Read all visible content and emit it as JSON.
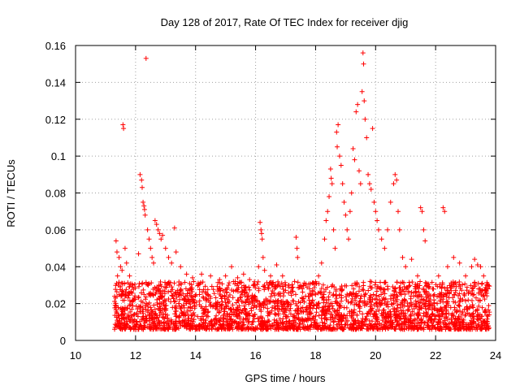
{
  "chart_data": {
    "type": "scatter",
    "title": "Day 128 of 2017, Rate Of TEC Index for receiver djig",
    "xlabel": "GPS time / hours",
    "ylabel": "ROTI / TECUs",
    "xlim": [
      10,
      24
    ],
    "ylim": [
      0,
      0.16
    ],
    "xticks": [
      10,
      12,
      14,
      16,
      18,
      20,
      22,
      24
    ],
    "xtick_labels": [
      "10",
      "12",
      "14",
      "16",
      "18",
      "20",
      "22",
      "24"
    ],
    "yticks": [
      0,
      0.02,
      0.04,
      0.06,
      0.08,
      0.1,
      0.12,
      0.14,
      0.16
    ],
    "ytick_labels": [
      "0",
      "0.02",
      "0.04",
      "0.06",
      "0.08",
      "0.1",
      "0.12",
      "0.14",
      "0.16"
    ],
    "grid": true,
    "marker": "plus",
    "color": "#ff0000",
    "series": [
      {
        "name": "ROTI",
        "points": [
          [
            11.35,
            0.054
          ],
          [
            11.38,
            0.048
          ],
          [
            11.4,
            0.035
          ],
          [
            11.42,
            0.03
          ],
          [
            11.45,
            0.045
          ],
          [
            11.5,
            0.04
          ],
          [
            11.55,
            0.038
          ],
          [
            11.58,
            0.117
          ],
          [
            11.6,
            0.115
          ],
          [
            11.65,
            0.05
          ],
          [
            11.7,
            0.042
          ],
          [
            11.8,
            0.035
          ],
          [
            11.9,
            0.03
          ],
          [
            12.1,
            0.047
          ],
          [
            12.15,
            0.09
          ],
          [
            12.2,
            0.087
          ],
          [
            12.22,
            0.083
          ],
          [
            12.25,
            0.075
          ],
          [
            12.28,
            0.073
          ],
          [
            12.3,
            0.071
          ],
          [
            12.32,
            0.068
          ],
          [
            12.35,
            0.153
          ],
          [
            12.4,
            0.06
          ],
          [
            12.45,
            0.055
          ],
          [
            12.5,
            0.05
          ],
          [
            12.55,
            0.045
          ],
          [
            12.6,
            0.042
          ],
          [
            12.65,
            0.065
          ],
          [
            12.7,
            0.063
          ],
          [
            12.75,
            0.06
          ],
          [
            12.8,
            0.058
          ],
          [
            12.85,
            0.055
          ],
          [
            12.9,
            0.057
          ],
          [
            13.0,
            0.05
          ],
          [
            13.1,
            0.045
          ],
          [
            13.2,
            0.042
          ],
          [
            13.3,
            0.061
          ],
          [
            13.35,
            0.048
          ],
          [
            13.5,
            0.04
          ],
          [
            13.7,
            0.036
          ],
          [
            13.9,
            0.034
          ],
          [
            14.2,
            0.036
          ],
          [
            14.5,
            0.035
          ],
          [
            14.8,
            0.033
          ],
          [
            15.0,
            0.035
          ],
          [
            15.2,
            0.04
          ],
          [
            15.4,
            0.034
          ],
          [
            15.6,
            0.036
          ],
          [
            15.8,
            0.033
          ],
          [
            16.1,
            0.04
          ],
          [
            16.15,
            0.064
          ],
          [
            16.18,
            0.06
          ],
          [
            16.2,
            0.058
          ],
          [
            16.22,
            0.055
          ],
          [
            16.25,
            0.045
          ],
          [
            16.3,
            0.038
          ],
          [
            16.5,
            0.035
          ],
          [
            16.7,
            0.041
          ],
          [
            16.9,
            0.035
          ],
          [
            17.1,
            0.03
          ],
          [
            17.3,
            0.032
          ],
          [
            17.35,
            0.056
          ],
          [
            17.38,
            0.05
          ],
          [
            17.4,
            0.045
          ],
          [
            17.6,
            0.03
          ],
          [
            17.8,
            0.028
          ],
          [
            17.9,
            0.027
          ],
          [
            18.1,
            0.035
          ],
          [
            18.2,
            0.042
          ],
          [
            18.3,
            0.055
          ],
          [
            18.35,
            0.065
          ],
          [
            18.4,
            0.07
          ],
          [
            18.45,
            0.078
          ],
          [
            18.5,
            0.093
          ],
          [
            18.52,
            0.088
          ],
          [
            18.55,
            0.085
          ],
          [
            18.6,
            0.06
          ],
          [
            18.65,
            0.05
          ],
          [
            18.7,
            0.113
          ],
          [
            18.72,
            0.105
          ],
          [
            18.75,
            0.117
          ],
          [
            18.8,
            0.1
          ],
          [
            18.85,
            0.095
          ],
          [
            18.9,
            0.085
          ],
          [
            18.95,
            0.075
          ],
          [
            19.0,
            0.068
          ],
          [
            19.05,
            0.06
          ],
          [
            19.1,
            0.055
          ],
          [
            19.15,
            0.07
          ],
          [
            19.2,
            0.08
          ],
          [
            19.25,
            0.104
          ],
          [
            19.3,
            0.098
          ],
          [
            19.35,
            0.124
          ],
          [
            19.4,
            0.128
          ],
          [
            19.45,
            0.092
          ],
          [
            19.5,
            0.085
          ],
          [
            19.55,
            0.135
          ],
          [
            19.58,
            0.156
          ],
          [
            19.6,
            0.15
          ],
          [
            19.62,
            0.13
          ],
          [
            19.65,
            0.12
          ],
          [
            19.7,
            0.11
          ],
          [
            19.75,
            0.09
          ],
          [
            19.8,
            0.085
          ],
          [
            19.85,
            0.082
          ],
          [
            19.9,
            0.115
          ],
          [
            19.95,
            0.075
          ],
          [
            20.0,
            0.07
          ],
          [
            20.05,
            0.065
          ],
          [
            20.1,
            0.06
          ],
          [
            20.2,
            0.055
          ],
          [
            20.3,
            0.05
          ],
          [
            20.4,
            0.06
          ],
          [
            20.5,
            0.075
          ],
          [
            20.6,
            0.085
          ],
          [
            20.65,
            0.09
          ],
          [
            20.7,
            0.087
          ],
          [
            20.75,
            0.07
          ],
          [
            20.8,
            0.06
          ],
          [
            20.9,
            0.045
          ],
          [
            21.0,
            0.04
          ],
          [
            21.2,
            0.044
          ],
          [
            21.4,
            0.035
          ],
          [
            21.5,
            0.072
          ],
          [
            21.55,
            0.07
          ],
          [
            21.6,
            0.06
          ],
          [
            21.65,
            0.054
          ],
          [
            21.7,
            0.03
          ],
          [
            21.9,
            0.028
          ],
          [
            22.1,
            0.035
          ],
          [
            22.25,
            0.072
          ],
          [
            22.3,
            0.07
          ],
          [
            22.4,
            0.04
          ],
          [
            22.6,
            0.045
          ],
          [
            22.8,
            0.042
          ],
          [
            23.0,
            0.035
          ],
          [
            23.2,
            0.04
          ],
          [
            23.3,
            0.044
          ],
          [
            23.4,
            0.041
          ],
          [
            23.5,
            0.04
          ],
          [
            23.6,
            0.035
          ],
          [
            23.7,
            0.03
          ],
          [
            23.75,
            0.028
          ]
        ]
      }
    ]
  }
}
